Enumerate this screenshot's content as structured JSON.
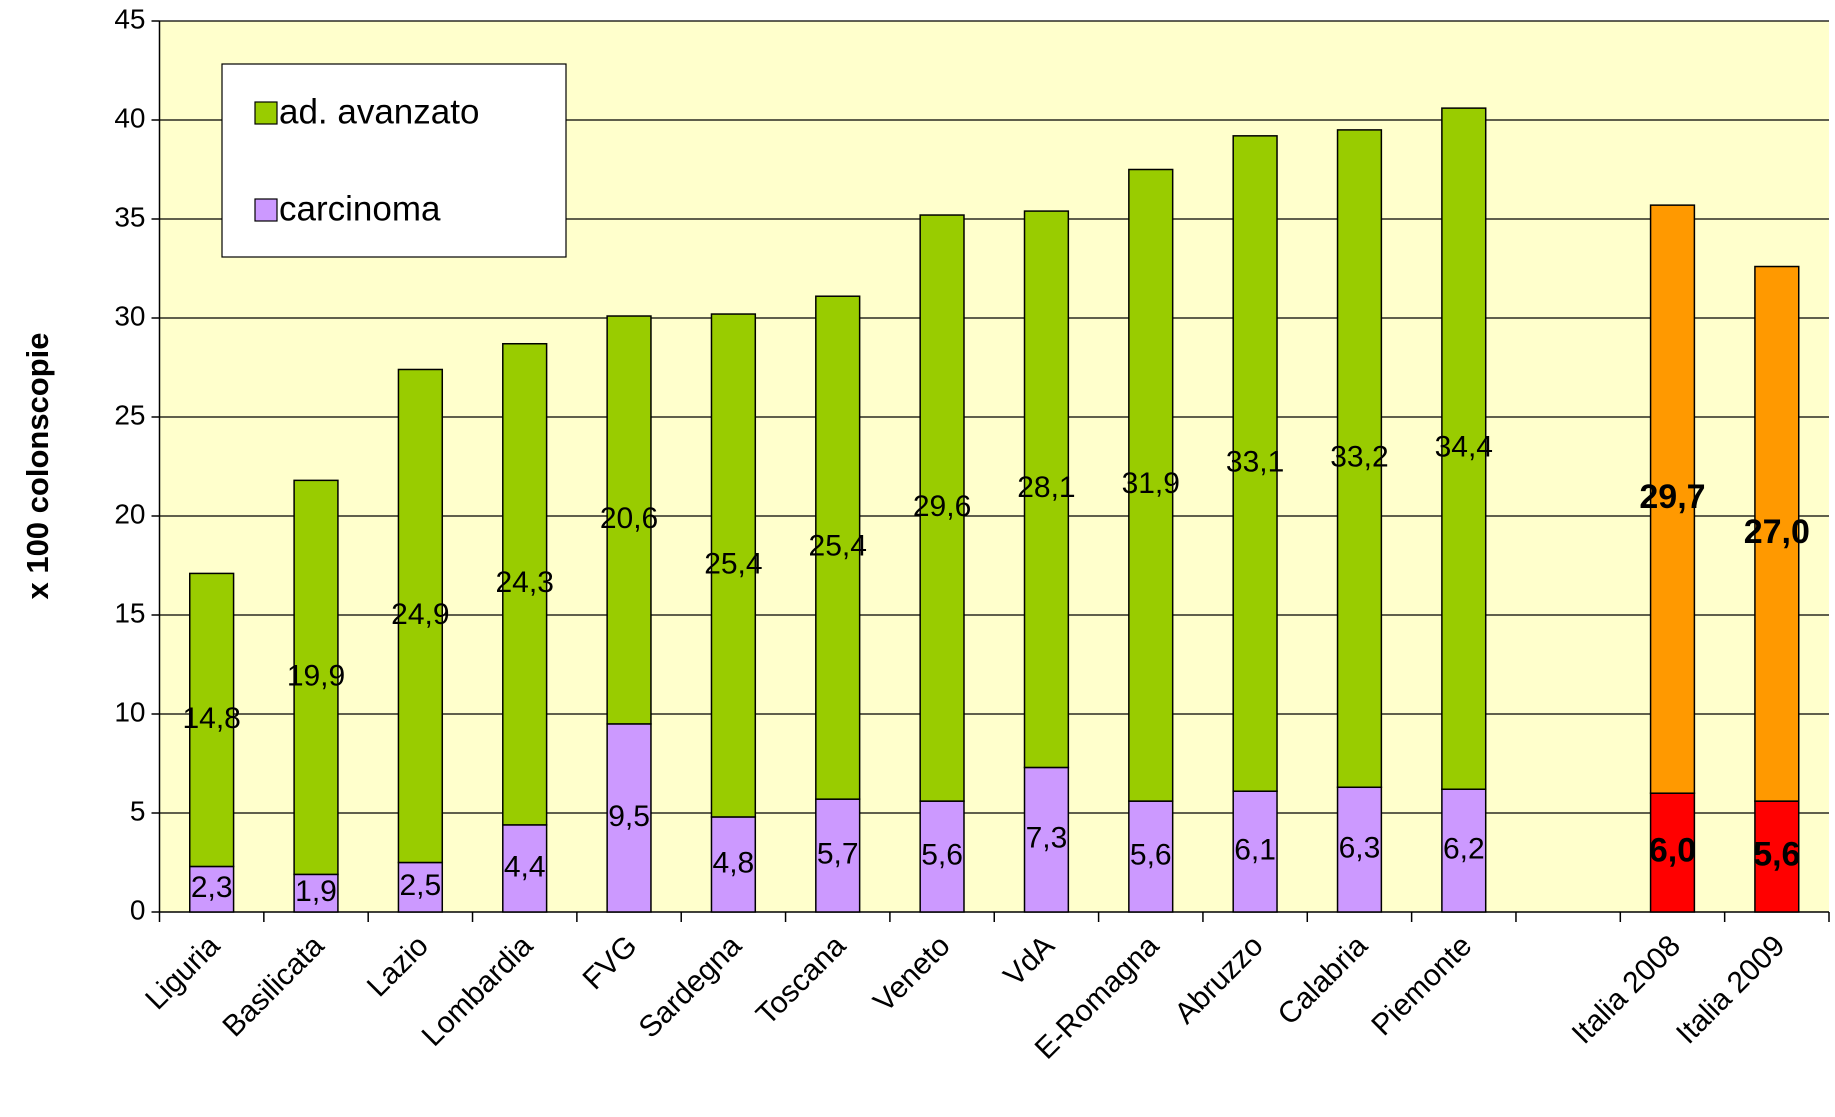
{
  "chart_data": {
    "type": "stacked_bar",
    "y_label": "x 100 colonscopie",
    "categories": [
      "Liguria",
      "Basilicata",
      "Lazio",
      "Lombardia",
      "FVG",
      "Sardegna",
      "Toscana",
      "Veneto",
      "VdA",
      "E-Romagna",
      "Abruzzo",
      "Calabria",
      "Piemonte",
      null,
      "Italia 2008",
      "Italia 2009"
    ],
    "series": [
      {
        "name": "carcinoma",
        "color": "#cc99ff",
        "colors": [
          "#cc99ff",
          "#cc99ff",
          "#cc99ff",
          "#cc99ff",
          "#cc99ff",
          "#cc99ff",
          "#cc99ff",
          "#cc99ff",
          "#cc99ff",
          "#cc99ff",
          "#cc99ff",
          "#cc99ff",
          "#cc99ff",
          null,
          "#ff0000",
          "#ff0000"
        ],
        "values": [
          2.3,
          1.9,
          2.5,
          4.4,
          9.5,
          4.8,
          5.7,
          5.6,
          7.3,
          5.6,
          6.1,
          6.3,
          6.2,
          null,
          6.0,
          5.6
        ],
        "value_labels": [
          "2,3",
          "1,9",
          "2,5",
          "4,4",
          "9,5",
          "4,8",
          "5,7",
          "5,6",
          "7,3",
          "5,6",
          "6,1",
          "6,3",
          "6,2",
          null,
          "6,0",
          "5,6"
        ]
      },
      {
        "name": "ad. avanzato",
        "color": "#99cc00",
        "colors": [
          "#99cc00",
          "#99cc00",
          "#99cc00",
          "#99cc00",
          "#99cc00",
          "#99cc00",
          "#99cc00",
          "#99cc00",
          "#99cc00",
          "#99cc00",
          "#99cc00",
          "#99cc00",
          "#99cc00",
          null,
          "#ff9900",
          "#ff9900"
        ],
        "values": [
          14.8,
          19.9,
          24.9,
          24.3,
          20.6,
          25.4,
          25.4,
          29.6,
          28.1,
          31.9,
          33.1,
          33.2,
          34.4,
          null,
          29.7,
          27.0
        ],
        "value_labels": [
          "14,8",
          "19,9",
          "24,9",
          "24,3",
          "20,6",
          "25,4",
          "25,4",
          "29,6",
          "28,1",
          "31,9",
          "33,1",
          "33,2",
          "34,4",
          null,
          "29,7",
          "27,0"
        ]
      }
    ],
    "ylim": [
      0,
      45
    ],
    "yticks": [
      0,
      5,
      10,
      15,
      20,
      25,
      30,
      35,
      40,
      45
    ],
    "grid": true,
    "legend": "upper left"
  }
}
